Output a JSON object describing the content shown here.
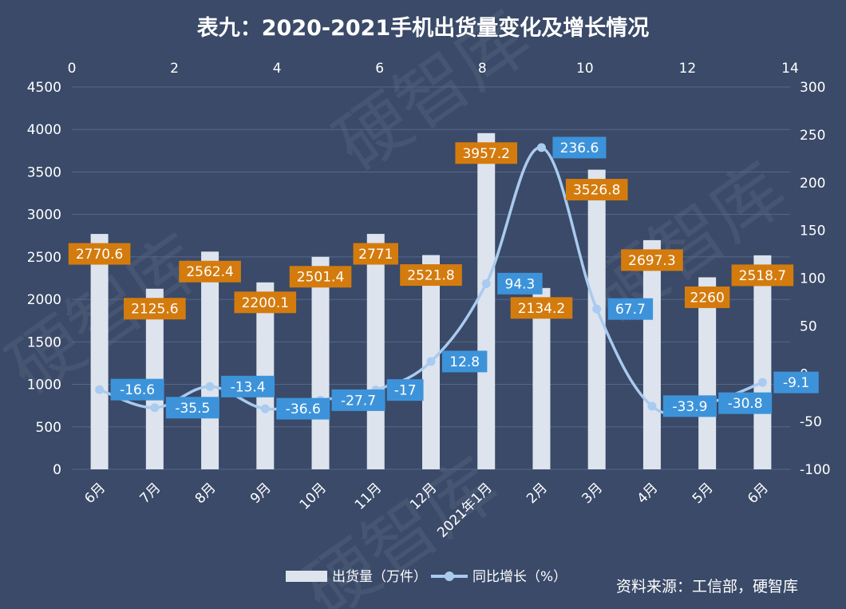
{
  "chart_data": {
    "type": "bar",
    "title": "表九：2020-2021手机出货量变化及增长情况",
    "categories": [
      "6月",
      "7月",
      "8月",
      "9月",
      "10月",
      "11月",
      "12月",
      "2021年1月",
      "2月",
      "3月",
      "4月",
      "5月",
      "6月"
    ],
    "series": [
      {
        "name": "出货量（万件）",
        "type": "bar",
        "axis": "left",
        "color": "#dde4ee",
        "label_color": "#d47b0e",
        "values": [
          2770.6,
          2125.6,
          2562.4,
          2200.1,
          2501.4,
          2771,
          2521.8,
          3957.2,
          2134.2,
          3526.8,
          2697.3,
          2260,
          2518.7
        ]
      },
      {
        "name": "同比增长（%）",
        "type": "line",
        "axis": "right",
        "color": "#a9cbef",
        "label_color": "#3d93da",
        "values": [
          -16.6,
          -35.5,
          -13.4,
          -36.6,
          -27.7,
          -17,
          12.8,
          94.3,
          236.6,
          67.7,
          -33.9,
          -30.8,
          -9.1
        ]
      }
    ],
    "left_axis": {
      "min": 0,
      "max": 4500,
      "ticks": [
        "0",
        "500",
        "1000",
        "1500",
        "2000",
        "2500",
        "3000",
        "3500",
        "4000",
        "4500"
      ]
    },
    "right_axis": {
      "min": -100,
      "max": 300,
      "ticks": [
        "-100",
        "-50",
        "0",
        "50",
        "100",
        "150",
        "200",
        "250",
        "300"
      ]
    },
    "top_axis": {
      "min": 0,
      "max": 14,
      "ticks": [
        "0",
        "2",
        "4",
        "6",
        "8",
        "10",
        "12",
        "14"
      ]
    },
    "grid": true,
    "legend_position": "bottom"
  },
  "source": "资料来源：工信部，硬智库",
  "watermark": "硬智库",
  "colors": {
    "background": "#3a4a68",
    "grid": "#56678a"
  }
}
